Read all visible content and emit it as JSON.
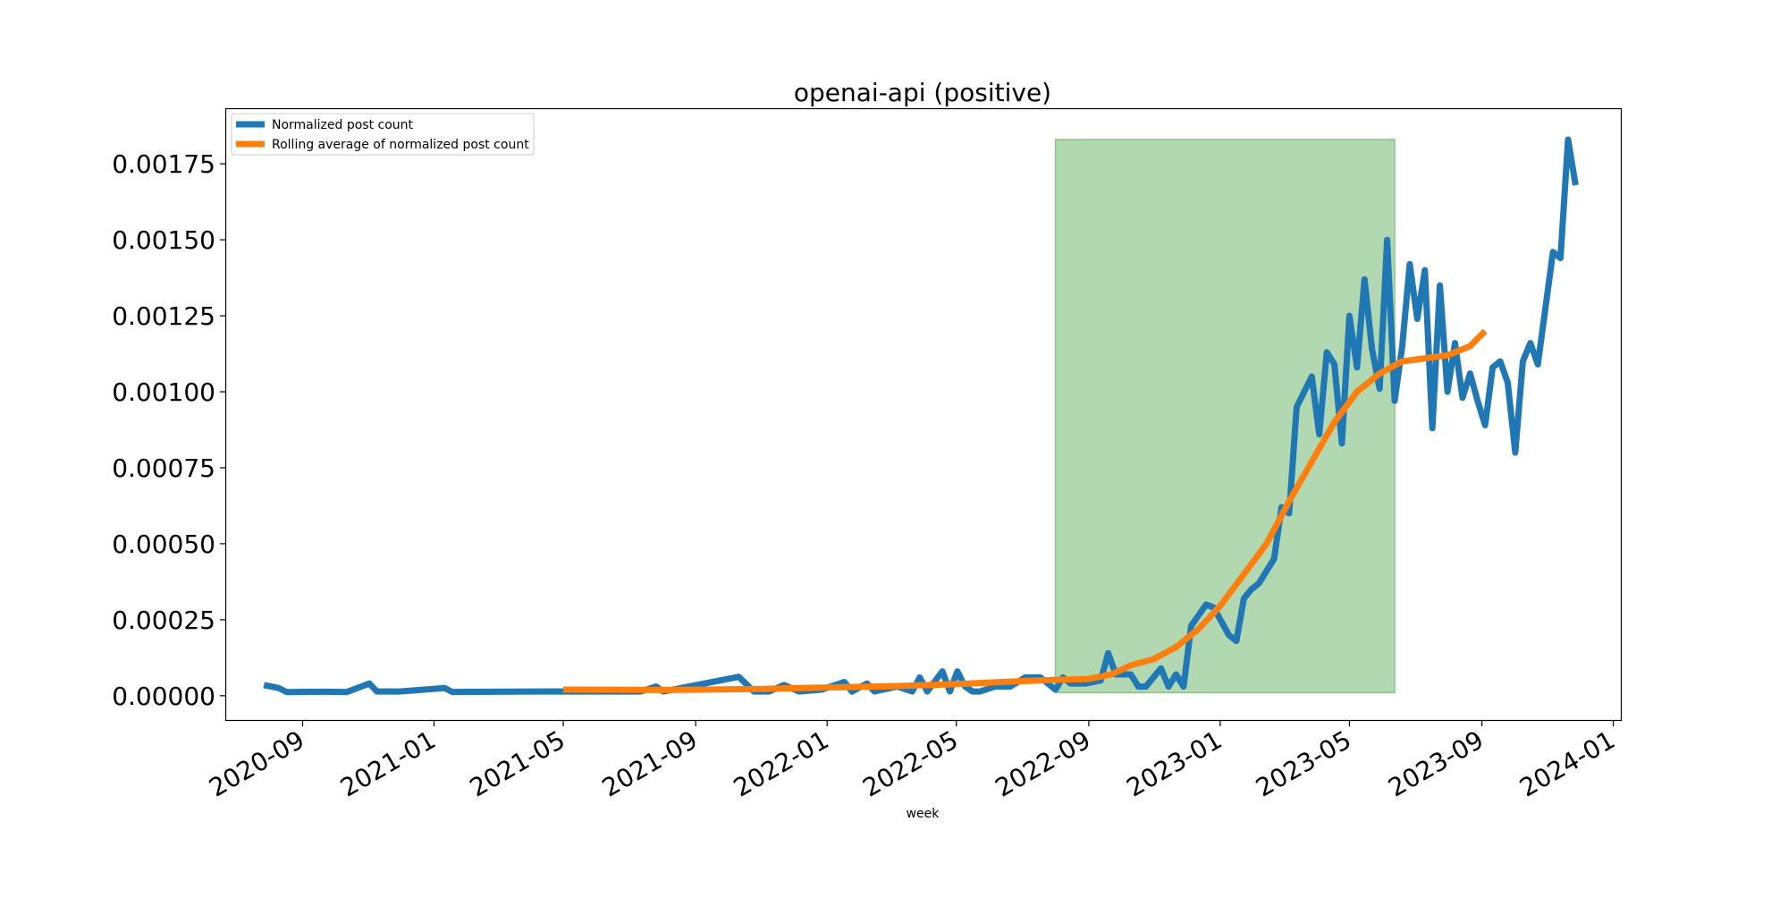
{
  "chart_data": {
    "type": "line",
    "title": "openai-api (positive)",
    "xlabel": "week",
    "ylabel": "",
    "x_ticks": [
      "2020-09",
      "2021-01",
      "2021-05",
      "2021-09",
      "2022-01",
      "2022-05",
      "2022-09",
      "2023-01",
      "2023-05",
      "2023-09",
      "2024-01"
    ],
    "x_tick_dates": [
      "2020-09-01",
      "2021-01-01",
      "2021-05-01",
      "2021-09-01",
      "2022-01-01",
      "2022-05-01",
      "2022-09-01",
      "2023-01-01",
      "2023-05-01",
      "2023-09-01",
      "2024-01-01"
    ],
    "y_ticks": [
      "0.00000",
      "0.00025",
      "0.00050",
      "0.00075",
      "0.00100",
      "0.00125",
      "0.00150",
      "0.00175"
    ],
    "y_tick_values": [
      0,
      0.00025,
      0.0005,
      0.00075,
      0.001,
      0.00125,
      0.0015,
      0.00175
    ],
    "xlim": [
      "2020-06-22",
      "2024-01-08"
    ],
    "ylim": [
      -8e-05,
      0.00193
    ],
    "grid": false,
    "legend_position": "top-left",
    "highlight_region": {
      "x_start": "2022-08-01",
      "x_end": "2023-06-12",
      "y_start": 1e-05,
      "y_end": 0.00183,
      "color": "#b2d8b2"
    },
    "series": [
      {
        "name": "Normalized post count",
        "color": "#1f77b4",
        "points": [
          [
            "2020-07-27",
            3.5e-05
          ],
          [
            "2020-08-10",
            2.5e-05
          ],
          [
            "2020-08-17",
            1.2e-05
          ],
          [
            "2020-09-21",
            1.3e-05
          ],
          [
            "2020-10-12",
            1.2e-05
          ],
          [
            "2020-11-02",
            4e-05
          ],
          [
            "2020-11-09",
            1.4e-05
          ],
          [
            "2020-11-30",
            1.4e-05
          ],
          [
            "2021-01-11",
            2.5e-05
          ],
          [
            "2021-01-18",
            1.2e-05
          ],
          [
            "2021-04-05",
            1.4e-05
          ],
          [
            "2021-07-12",
            1.4e-05
          ],
          [
            "2021-07-26",
            3e-05
          ],
          [
            "2021-08-02",
            1.4e-05
          ],
          [
            "2021-10-11",
            6.2e-05
          ],
          [
            "2021-10-25",
            1.4e-05
          ],
          [
            "2021-11-08",
            1.4e-05
          ],
          [
            "2021-11-22",
            3.5e-05
          ],
          [
            "2021-12-06",
            1.4e-05
          ],
          [
            "2021-12-27",
            2e-05
          ],
          [
            "2022-01-17",
            4.5e-05
          ],
          [
            "2022-01-24",
            1.4e-05
          ],
          [
            "2022-02-07",
            4e-05
          ],
          [
            "2022-02-14",
            1.4e-05
          ],
          [
            "2022-03-07",
            3e-05
          ],
          [
            "2022-03-21",
            1.4e-05
          ],
          [
            "2022-03-28",
            6e-05
          ],
          [
            "2022-04-04",
            1.4e-05
          ],
          [
            "2022-04-18",
            8e-05
          ],
          [
            "2022-04-25",
            1.4e-05
          ],
          [
            "2022-05-02",
            8e-05
          ],
          [
            "2022-05-09",
            3e-05
          ],
          [
            "2022-05-16",
            1.4e-05
          ],
          [
            "2022-05-23",
            1.4e-05
          ],
          [
            "2022-06-06",
            3e-05
          ],
          [
            "2022-06-20",
            3e-05
          ],
          [
            "2022-07-04",
            6e-05
          ],
          [
            "2022-07-18",
            6e-05
          ],
          [
            "2022-07-25",
            4e-05
          ],
          [
            "2022-08-01",
            2e-05
          ],
          [
            "2022-08-08",
            6e-05
          ],
          [
            "2022-08-15",
            4e-05
          ],
          [
            "2022-08-29",
            4e-05
          ],
          [
            "2022-09-12",
            5e-05
          ],
          [
            "2022-09-19",
            0.00014
          ],
          [
            "2022-09-26",
            7e-05
          ],
          [
            "2022-10-10",
            7e-05
          ],
          [
            "2022-10-17",
            3e-05
          ],
          [
            "2022-10-24",
            3e-05
          ],
          [
            "2022-11-07",
            9e-05
          ],
          [
            "2022-11-14",
            3e-05
          ],
          [
            "2022-11-21",
            7e-05
          ],
          [
            "2022-11-28",
            3e-05
          ],
          [
            "2022-12-05",
            0.00023
          ],
          [
            "2022-12-19",
            0.0003
          ],
          [
            "2022-12-26",
            0.00029
          ],
          [
            "2023-01-09",
            0.0002
          ],
          [
            "2023-01-16",
            0.00018
          ],
          [
            "2023-01-23",
            0.00032
          ],
          [
            "2023-01-30",
            0.00035
          ],
          [
            "2023-02-06",
            0.00037
          ],
          [
            "2023-02-20",
            0.00045
          ],
          [
            "2023-02-27",
            0.00062
          ],
          [
            "2023-03-06",
            0.0006
          ],
          [
            "2023-03-13",
            0.00095
          ],
          [
            "2023-03-27",
            0.00105
          ],
          [
            "2023-04-03",
            0.00086
          ],
          [
            "2023-04-10",
            0.00113
          ],
          [
            "2023-04-17",
            0.00109
          ],
          [
            "2023-04-24",
            0.00083
          ],
          [
            "2023-05-01",
            0.00125
          ],
          [
            "2023-05-08",
            0.00108
          ],
          [
            "2023-05-15",
            0.00137
          ],
          [
            "2023-05-22",
            0.00114
          ],
          [
            "2023-05-29",
            0.00101
          ],
          [
            "2023-06-05",
            0.0015
          ],
          [
            "2023-06-12",
            0.00097
          ],
          [
            "2023-06-19",
            0.00115
          ],
          [
            "2023-06-26",
            0.00142
          ],
          [
            "2023-07-03",
            0.00124
          ],
          [
            "2023-07-10",
            0.0014
          ],
          [
            "2023-07-17",
            0.00088
          ],
          [
            "2023-07-24",
            0.00135
          ],
          [
            "2023-07-31",
            0.001
          ],
          [
            "2023-08-07",
            0.00116
          ],
          [
            "2023-08-14",
            0.00098
          ],
          [
            "2023-08-21",
            0.00106
          ],
          [
            "2023-08-28",
            0.00097
          ],
          [
            "2023-09-04",
            0.00089
          ],
          [
            "2023-09-11",
            0.00108
          ],
          [
            "2023-09-18",
            0.0011
          ],
          [
            "2023-09-25",
            0.00103
          ],
          [
            "2023-10-02",
            0.0008
          ],
          [
            "2023-10-09",
            0.0011
          ],
          [
            "2023-10-16",
            0.00116
          ],
          [
            "2023-10-23",
            0.00109
          ],
          [
            "2023-11-06",
            0.00146
          ],
          [
            "2023-11-13",
            0.00144
          ],
          [
            "2023-11-20",
            0.00183
          ],
          [
            "2023-11-27",
            0.00168
          ]
        ]
      },
      {
        "name": "Rolling average of normalized post count",
        "color": "#ff7f0e",
        "points": [
          [
            "2021-05-01",
            2e-05
          ],
          [
            "2021-08-01",
            1.9e-05
          ],
          [
            "2021-11-01",
            2.2e-05
          ],
          [
            "2022-01-01",
            2.7e-05
          ],
          [
            "2022-03-01",
            3.1e-05
          ],
          [
            "2022-05-01",
            3.8e-05
          ],
          [
            "2022-07-01",
            4.8e-05
          ],
          [
            "2022-08-01",
            5.2e-05
          ],
          [
            "2022-09-01",
            5.5e-05
          ],
          [
            "2022-09-22",
            7e-05
          ],
          [
            "2022-10-10",
            0.0001
          ],
          [
            "2022-10-31",
            0.00012
          ],
          [
            "2022-11-21",
            0.00016
          ],
          [
            "2022-12-12",
            0.00022
          ],
          [
            "2023-01-02",
            0.0003
          ],
          [
            "2023-01-23",
            0.0004
          ],
          [
            "2023-02-13",
            0.0005
          ],
          [
            "2023-03-06",
            0.00064
          ],
          [
            "2023-03-27",
            0.00077
          ],
          [
            "2023-04-17",
            0.0009
          ],
          [
            "2023-05-08",
            0.001
          ],
          [
            "2023-05-29",
            0.00106
          ],
          [
            "2023-06-19",
            0.0011
          ],
          [
            "2023-07-10",
            0.00111
          ],
          [
            "2023-07-31",
            0.00112
          ],
          [
            "2023-08-21",
            0.00115
          ],
          [
            "2023-09-04",
            0.0012
          ]
        ]
      }
    ]
  }
}
